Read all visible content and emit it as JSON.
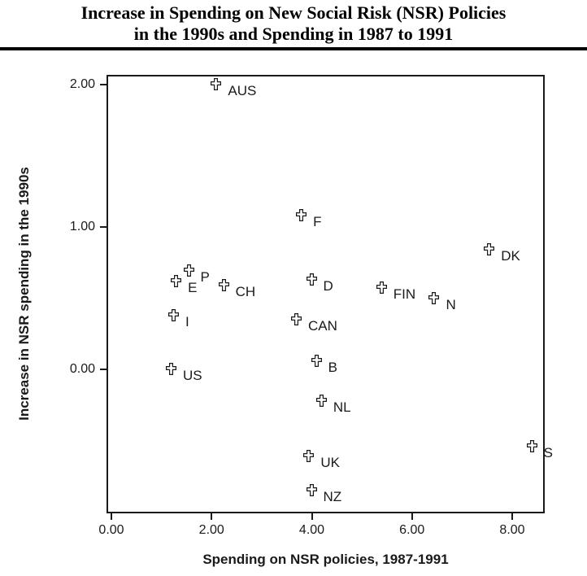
{
  "title": {
    "line1": "Increase in Spending on New Social Risk (NSR) Policies",
    "line2": "in the 1990s and Spending in 1987 to 1991"
  },
  "colors": {
    "ink": "#1a1a1a",
    "background": "#ffffff"
  },
  "chart_data": {
    "type": "scatter",
    "title": "Increase in Spending on New Social Risk (NSR) Policies in the 1990s and Spending in 1987 to 1991",
    "xlabel": "Spending on NSR policies, 1987-1991",
    "ylabel": "Increase in NSR spending in the 1990s",
    "xlim": [
      -0.1,
      8.7
    ],
    "ylim": [
      -1.02,
      2.07
    ],
    "grid": false,
    "legend": "none",
    "marker": "open-cross",
    "x_ticks": [
      "0.00",
      "2.00",
      "4.00",
      "6.00",
      "8.00"
    ],
    "x_tick_values": [
      0,
      2,
      4,
      6,
      8
    ],
    "y_ticks": [
      "2.00",
      "1.00",
      "0.00"
    ],
    "y_tick_values": [
      2,
      1,
      0
    ],
    "points": [
      {
        "label": "AUS",
        "x": 2.1,
        "y": 2.0
      },
      {
        "label": "F",
        "x": 3.8,
        "y": 1.08
      },
      {
        "label": "DK",
        "x": 7.55,
        "y": 0.84
      },
      {
        "label": "P",
        "x": 1.55,
        "y": 0.69
      },
      {
        "label": "E",
        "x": 1.3,
        "y": 0.62
      },
      {
        "label": "CH",
        "x": 2.25,
        "y": 0.59
      },
      {
        "label": "D",
        "x": 4.0,
        "y": 0.63
      },
      {
        "label": "FIN",
        "x": 5.4,
        "y": 0.57
      },
      {
        "label": "N",
        "x": 6.45,
        "y": 0.5
      },
      {
        "label": "I",
        "x": 1.25,
        "y": 0.38
      },
      {
        "label": "CAN",
        "x": 3.7,
        "y": 0.35
      },
      {
        "label": "B",
        "x": 4.1,
        "y": 0.06
      },
      {
        "label": "US",
        "x": 1.2,
        "y": 0.0
      },
      {
        "label": "NL",
        "x": 4.2,
        "y": -0.22
      },
      {
        "label": "UK",
        "x": 3.95,
        "y": -0.61
      },
      {
        "label": "NZ",
        "x": 4.0,
        "y": -0.85
      },
      {
        "label": "S",
        "x": 8.4,
        "y": -0.54
      }
    ]
  }
}
